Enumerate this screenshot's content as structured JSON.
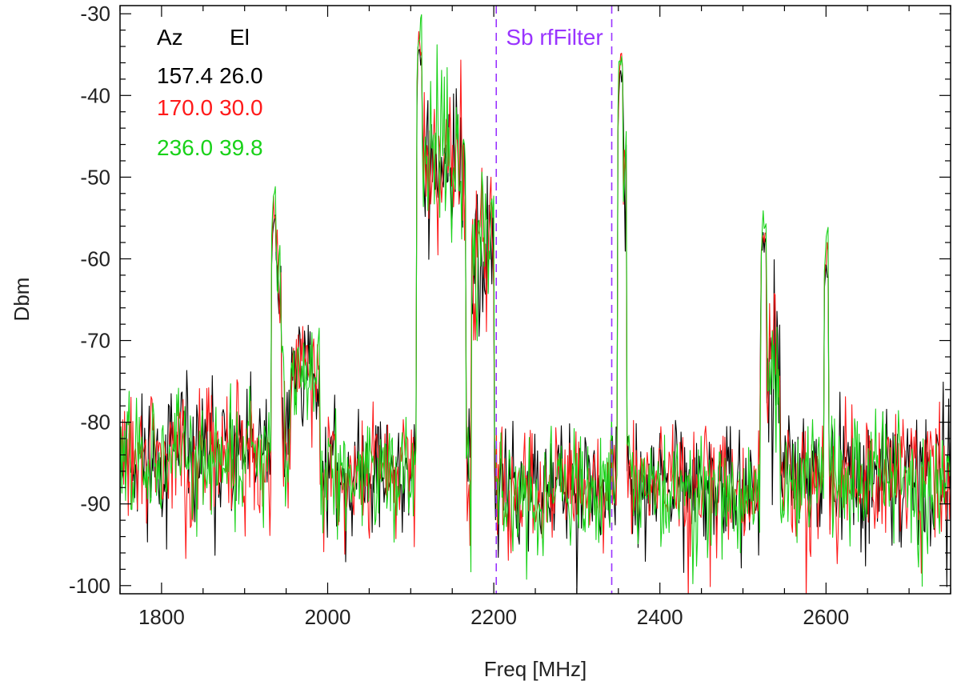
{
  "chart_data": {
    "type": "line",
    "xlabel": "Freq [MHz]",
    "ylabel": "Dbm",
    "xlim": [
      1750,
      2750
    ],
    "ylim": [
      -101,
      -29
    ],
    "x_ticks": [
      1800,
      2000,
      2200,
      2400,
      2600
    ],
    "y_ticks": [
      -30,
      -40,
      -50,
      -60,
      -70,
      -80,
      -90,
      -100
    ],
    "grid": false,
    "legend": {
      "placement": "top-left",
      "header": [
        "Az",
        "El"
      ],
      "entries": [
        {
          "az": "157.4",
          "el": "26.0",
          "color": "#000000"
        },
        {
          "az": "170.0",
          "el": "30.0",
          "color": "#ff1a1a"
        },
        {
          "az": "236.0",
          "el": "39.8",
          "color": "#19d219"
        }
      ]
    },
    "annotations": [
      {
        "text": "Sb rfFilter",
        "color": "#9933ff",
        "x_lines": [
          2203,
          2342
        ]
      }
    ],
    "bands": [
      {
        "from": 1750,
        "to": 1935,
        "level": -84,
        "spread": 4.5
      },
      {
        "from": 1935,
        "to": 1944,
        "level": -62,
        "spread": 3.5
      },
      {
        "from": 1944,
        "to": 1955,
        "level": -82,
        "spread": 5
      },
      {
        "from": 1955,
        "to": 1990,
        "level": -73,
        "spread": 3.5
      },
      {
        "from": 1990,
        "to": 2108,
        "level": -86,
        "spread": 4
      },
      {
        "from": 2108,
        "to": 2166,
        "level": -48,
        "spread": 6
      },
      {
        "from": 2166,
        "to": 2173,
        "level": -88,
        "spread": 5
      },
      {
        "from": 2173,
        "to": 2200,
        "level": -58,
        "spread": 6
      },
      {
        "from": 2200,
        "to": 2350,
        "level": -88,
        "spread": 4
      },
      {
        "from": 2350,
        "to": 2360,
        "level": -50,
        "spread": 6
      },
      {
        "from": 2360,
        "to": 2520,
        "level": -88,
        "spread": 4
      },
      {
        "from": 2520,
        "to": 2545,
        "level": -73,
        "spread": 6
      },
      {
        "from": 2545,
        "to": 2750,
        "level": -86,
        "spread": 4.5
      }
    ],
    "series": [
      {
        "color": "#000000",
        "seed": 11
      },
      {
        "color": "#ff1a1a",
        "seed": 29
      },
      {
        "color": "#19d219",
        "seed": 47
      }
    ],
    "peaks": [
      {
        "x": 1935,
        "y": -57
      },
      {
        "x": 2110,
        "y": -37
      },
      {
        "x": 2352,
        "y": -40
      },
      {
        "x": 2525,
        "y": -60
      },
      {
        "x": 2600,
        "y": -63
      }
    ]
  }
}
